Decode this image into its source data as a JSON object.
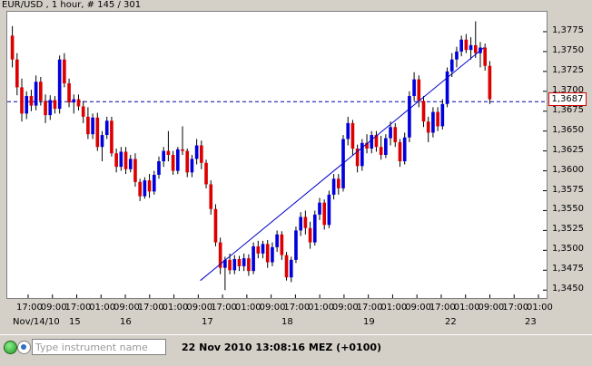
{
  "window": {
    "title": "EUR/USD , 1 hour, # 145 / 301"
  },
  "chart_data": {
    "type": "candlestick",
    "symbol": "EUR/USD",
    "timeframe": "1 hour",
    "bars_shown": 145,
    "bars_total": 301,
    "ylim": [
      1.344,
      1.38
    ],
    "yticks": [
      "1,3775",
      "1,3750",
      "1,3725",
      "1,3700",
      "1,3675",
      "1,3650",
      "1,3625",
      "1,3600",
      "1,3575",
      "1,3550",
      "1,3525",
      "1,3500",
      "1,3475",
      "1,3450"
    ],
    "ytick_values": [
      1.3775,
      1.375,
      1.3725,
      1.37,
      1.3675,
      1.365,
      1.3625,
      1.36,
      1.3575,
      1.355,
      1.3525,
      1.35,
      1.3475,
      1.345
    ],
    "xticks": [
      "17:00",
      "09:00",
      "17:00",
      "01:00",
      "09:00",
      "17:00",
      "01:00",
      "09:00",
      "17:00",
      "01:00",
      "09:00",
      "17:00",
      "01:00",
      "09:00",
      "17:00",
      "01:00",
      "09:00",
      "17:00",
      "01:00",
      "09:00",
      "17:00",
      "01:00"
    ],
    "date_labels": [
      "Nov/14/10",
      "15",
      "16",
      "17",
      "18",
      "19",
      "22",
      "23"
    ],
    "current_price": 1.3687,
    "current_price_label": "1,3687",
    "bull_color": "#0000dd",
    "bear_color": "#dd0000",
    "trendline": {
      "from": {
        "bar": 102,
        "price": 1.3462
      },
      "to": {
        "bar": 254,
        "price": 1.3755
      }
    },
    "candles": [
      {
        "o": 1.377,
        "h": 1.3782,
        "l": 1.373,
        "c": 1.374
      },
      {
        "o": 1.374,
        "h": 1.3748,
        "l": 1.3695,
        "c": 1.3705
      },
      {
        "o": 1.3705,
        "h": 1.3716,
        "l": 1.3662,
        "c": 1.3672
      },
      {
        "o": 1.3672,
        "h": 1.37,
        "l": 1.3665,
        "c": 1.3694
      },
      {
        "o": 1.3694,
        "h": 1.3702,
        "l": 1.3675,
        "c": 1.3682
      },
      {
        "o": 1.3682,
        "h": 1.372,
        "l": 1.3676,
        "c": 1.3712
      },
      {
        "o": 1.3712,
        "h": 1.3718,
        "l": 1.3682,
        "c": 1.3688
      },
      {
        "o": 1.3688,
        "h": 1.3696,
        "l": 1.366,
        "c": 1.367
      },
      {
        "o": 1.367,
        "h": 1.3695,
        "l": 1.3664,
        "c": 1.3689
      },
      {
        "o": 1.3689,
        "h": 1.3694,
        "l": 1.3672,
        "c": 1.3678
      },
      {
        "o": 1.3678,
        "h": 1.3745,
        "l": 1.3672,
        "c": 1.374
      },
      {
        "o": 1.374,
        "h": 1.3748,
        "l": 1.3705,
        "c": 1.371
      },
      {
        "o": 1.371,
        "h": 1.3716,
        "l": 1.368,
        "c": 1.3686
      },
      {
        "o": 1.3686,
        "h": 1.3696,
        "l": 1.3672,
        "c": 1.369
      },
      {
        "o": 1.369,
        "h": 1.3696,
        "l": 1.3676,
        "c": 1.3681
      },
      {
        "o": 1.3681,
        "h": 1.3688,
        "l": 1.366,
        "c": 1.3668
      },
      {
        "o": 1.3668,
        "h": 1.368,
        "l": 1.364,
        "c": 1.3646
      },
      {
        "o": 1.3646,
        "h": 1.3672,
        "l": 1.364,
        "c": 1.3667
      },
      {
        "o": 1.3667,
        "h": 1.3673,
        "l": 1.3625,
        "c": 1.363
      },
      {
        "o": 1.363,
        "h": 1.365,
        "l": 1.3612,
        "c": 1.3645
      },
      {
        "o": 1.3645,
        "h": 1.3668,
        "l": 1.364,
        "c": 1.3663
      },
      {
        "o": 1.3663,
        "h": 1.3668,
        "l": 1.3618,
        "c": 1.3622
      },
      {
        "o": 1.3622,
        "h": 1.3628,
        "l": 1.3598,
        "c": 1.3605
      },
      {
        "o": 1.3605,
        "h": 1.363,
        "l": 1.36,
        "c": 1.3624
      },
      {
        "o": 1.3624,
        "h": 1.363,
        "l": 1.3596,
        "c": 1.3602
      },
      {
        "o": 1.3602,
        "h": 1.362,
        "l": 1.3598,
        "c": 1.3615
      },
      {
        "o": 1.3615,
        "h": 1.3622,
        "l": 1.358,
        "c": 1.3586
      },
      {
        "o": 1.3586,
        "h": 1.359,
        "l": 1.3562,
        "c": 1.3568
      },
      {
        "o": 1.3568,
        "h": 1.3592,
        "l": 1.3565,
        "c": 1.3588
      },
      {
        "o": 1.3588,
        "h": 1.3596,
        "l": 1.3566,
        "c": 1.3574
      },
      {
        "o": 1.3574,
        "h": 1.36,
        "l": 1.357,
        "c": 1.3595
      },
      {
        "o": 1.3595,
        "h": 1.3618,
        "l": 1.359,
        "c": 1.3612
      },
      {
        "o": 1.3612,
        "h": 1.363,
        "l": 1.3605,
        "c": 1.3625
      },
      {
        "o": 1.3625,
        "h": 1.365,
        "l": 1.3612,
        "c": 1.362
      },
      {
        "o": 1.362,
        "h": 1.3625,
        "l": 1.3595,
        "c": 1.36
      },
      {
        "o": 1.36,
        "h": 1.363,
        "l": 1.3596,
        "c": 1.3627
      },
      {
        "o": 1.3627,
        "h": 1.3656,
        "l": 1.362,
        "c": 1.3625
      },
      {
        "o": 1.3625,
        "h": 1.3628,
        "l": 1.3592,
        "c": 1.3598
      },
      {
        "o": 1.3598,
        "h": 1.362,
        "l": 1.3592,
        "c": 1.3615
      },
      {
        "o": 1.3615,
        "h": 1.364,
        "l": 1.3608,
        "c": 1.3632
      },
      {
        "o": 1.3632,
        "h": 1.3638,
        "l": 1.3602,
        "c": 1.361
      },
      {
        "o": 1.361,
        "h": 1.3614,
        "l": 1.3578,
        "c": 1.3583
      },
      {
        "o": 1.3583,
        "h": 1.3588,
        "l": 1.3545,
        "c": 1.3552
      },
      {
        "o": 1.3552,
        "h": 1.3558,
        "l": 1.3505,
        "c": 1.351
      },
      {
        "o": 1.351,
        "h": 1.3516,
        "l": 1.347,
        "c": 1.3478
      },
      {
        "o": 1.3478,
        "h": 1.3492,
        "l": 1.345,
        "c": 1.3488
      },
      {
        "o": 1.3488,
        "h": 1.3496,
        "l": 1.347,
        "c": 1.3475
      },
      {
        "o": 1.3475,
        "h": 1.3494,
        "l": 1.347,
        "c": 1.3489
      },
      {
        "o": 1.3489,
        "h": 1.3493,
        "l": 1.3474,
        "c": 1.348
      },
      {
        "o": 1.348,
        "h": 1.3496,
        "l": 1.3474,
        "c": 1.349
      },
      {
        "o": 1.349,
        "h": 1.3495,
        "l": 1.3468,
        "c": 1.3474
      },
      {
        "o": 1.3474,
        "h": 1.351,
        "l": 1.347,
        "c": 1.3505
      },
      {
        "o": 1.3505,
        "h": 1.3512,
        "l": 1.349,
        "c": 1.3496
      },
      {
        "o": 1.3496,
        "h": 1.3512,
        "l": 1.349,
        "c": 1.3508
      },
      {
        "o": 1.3508,
        "h": 1.3513,
        "l": 1.3478,
        "c": 1.3485
      },
      {
        "o": 1.3485,
        "h": 1.351,
        "l": 1.348,
        "c": 1.3504
      },
      {
        "o": 1.3504,
        "h": 1.3525,
        "l": 1.3498,
        "c": 1.352
      },
      {
        "o": 1.352,
        "h": 1.3524,
        "l": 1.3488,
        "c": 1.3494
      },
      {
        "o": 1.3494,
        "h": 1.3498,
        "l": 1.3462,
        "c": 1.3466
      },
      {
        "o": 1.3466,
        "h": 1.3492,
        "l": 1.346,
        "c": 1.3488
      },
      {
        "o": 1.3488,
        "h": 1.353,
        "l": 1.3484,
        "c": 1.3525
      },
      {
        "o": 1.3525,
        "h": 1.3548,
        "l": 1.3518,
        "c": 1.3542
      },
      {
        "o": 1.3542,
        "h": 1.355,
        "l": 1.352,
        "c": 1.3528
      },
      {
        "o": 1.3528,
        "h": 1.3536,
        "l": 1.3502,
        "c": 1.351
      },
      {
        "o": 1.351,
        "h": 1.355,
        "l": 1.3506,
        "c": 1.3545
      },
      {
        "o": 1.3545,
        "h": 1.3566,
        "l": 1.3538,
        "c": 1.356
      },
      {
        "o": 1.356,
        "h": 1.3564,
        "l": 1.3526,
        "c": 1.3532
      },
      {
        "o": 1.3532,
        "h": 1.3575,
        "l": 1.3528,
        "c": 1.357
      },
      {
        "o": 1.357,
        "h": 1.3596,
        "l": 1.3564,
        "c": 1.359
      },
      {
        "o": 1.359,
        "h": 1.3596,
        "l": 1.357,
        "c": 1.3578
      },
      {
        "o": 1.3578,
        "h": 1.3645,
        "l": 1.3574,
        "c": 1.364
      },
      {
        "o": 1.364,
        "h": 1.3668,
        "l": 1.3632,
        "c": 1.366
      },
      {
        "o": 1.366,
        "h": 1.3664,
        "l": 1.362,
        "c": 1.3628
      },
      {
        "o": 1.3628,
        "h": 1.3633,
        "l": 1.3598,
        "c": 1.3606
      },
      {
        "o": 1.3606,
        "h": 1.364,
        "l": 1.36,
        "c": 1.3635
      },
      {
        "o": 1.3635,
        "h": 1.3646,
        "l": 1.3622,
        "c": 1.3628
      },
      {
        "o": 1.3628,
        "h": 1.365,
        "l": 1.3622,
        "c": 1.3645
      },
      {
        "o": 1.3645,
        "h": 1.365,
        "l": 1.3624,
        "c": 1.363
      },
      {
        "o": 1.363,
        "h": 1.3644,
        "l": 1.3614,
        "c": 1.362
      },
      {
        "o": 1.362,
        "h": 1.3646,
        "l": 1.3616,
        "c": 1.3641
      },
      {
        "o": 1.3641,
        "h": 1.3662,
        "l": 1.3632,
        "c": 1.3655
      },
      {
        "o": 1.3655,
        "h": 1.366,
        "l": 1.363,
        "c": 1.3636
      },
      {
        "o": 1.3636,
        "h": 1.364,
        "l": 1.3605,
        "c": 1.3612
      },
      {
        "o": 1.3612,
        "h": 1.3648,
        "l": 1.3608,
        "c": 1.3642
      },
      {
        "o": 1.3642,
        "h": 1.37,
        "l": 1.3636,
        "c": 1.3694
      },
      {
        "o": 1.3694,
        "h": 1.3724,
        "l": 1.3688,
        "c": 1.3715
      },
      {
        "o": 1.3715,
        "h": 1.372,
        "l": 1.368,
        "c": 1.3688
      },
      {
        "o": 1.3688,
        "h": 1.3694,
        "l": 1.3655,
        "c": 1.3662
      },
      {
        "o": 1.3662,
        "h": 1.3668,
        "l": 1.3636,
        "c": 1.3648
      },
      {
        "o": 1.3648,
        "h": 1.368,
        "l": 1.3642,
        "c": 1.3674
      },
      {
        "o": 1.3674,
        "h": 1.368,
        "l": 1.365,
        "c": 1.3656
      },
      {
        "o": 1.3656,
        "h": 1.369,
        "l": 1.3652,
        "c": 1.3684
      },
      {
        "o": 1.3684,
        "h": 1.373,
        "l": 1.368,
        "c": 1.3725
      },
      {
        "o": 1.3725,
        "h": 1.3748,
        "l": 1.3718,
        "c": 1.374
      },
      {
        "o": 1.374,
        "h": 1.3756,
        "l": 1.373,
        "c": 1.375
      },
      {
        "o": 1.375,
        "h": 1.377,
        "l": 1.3744,
        "c": 1.3765
      },
      {
        "o": 1.3765,
        "h": 1.3772,
        "l": 1.3748,
        "c": 1.3752
      },
      {
        "o": 1.3752,
        "h": 1.3768,
        "l": 1.374,
        "c": 1.3758
      },
      {
        "o": 1.3758,
        "h": 1.3788,
        "l": 1.3742,
        "c": 1.3748
      },
      {
        "o": 1.3748,
        "h": 1.3762,
        "l": 1.373,
        "c": 1.3755
      },
      {
        "o": 1.3755,
        "h": 1.376,
        "l": 1.3726,
        "c": 1.3732
      },
      {
        "o": 1.3732,
        "h": 1.3738,
        "l": 1.3684,
        "c": 1.369
      }
    ]
  },
  "statusbar": {
    "input_placeholder": "Type instrument name",
    "clock": "22 Nov 2010 13:08:16  MEZ (+0100)"
  }
}
